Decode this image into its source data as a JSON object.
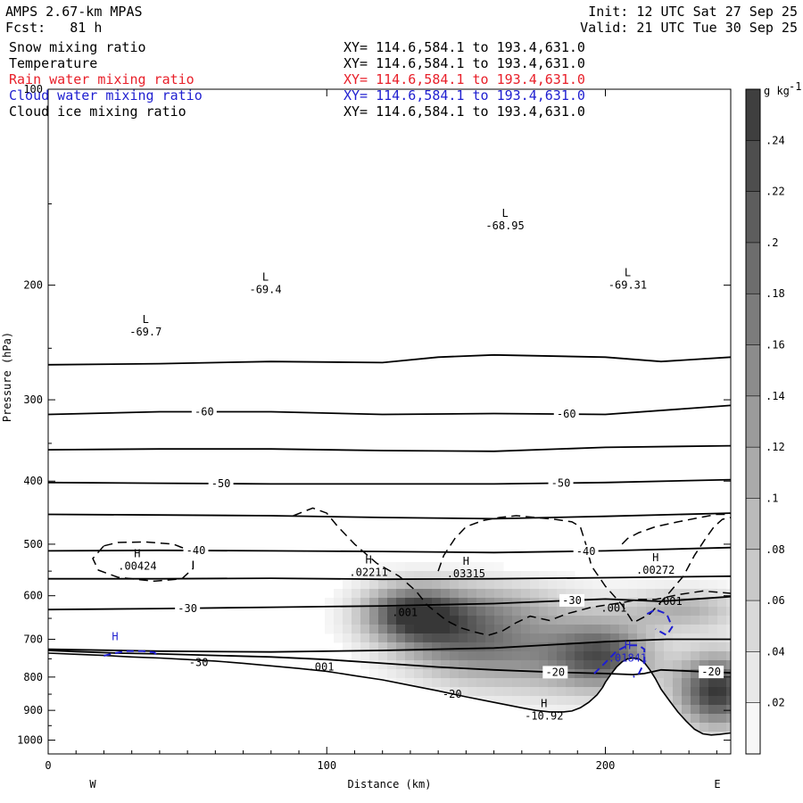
{
  "header": {
    "model": "AMPS 2.67-km MPAS",
    "forecast": "Fcst:   81 h",
    "init": "Init: 12 UTC Sat 27 Sep 25",
    "valid": "Valid: 21 UTC Tue 30 Sep 25"
  },
  "fields": [
    {
      "name": "Snow mixing ratio",
      "xy": "XY= 114.6,584.1 to 193.4,631.0",
      "color": "#000000"
    },
    {
      "name": "Temperature",
      "xy": "XY= 114.6,584.1 to 193.4,631.0",
      "color": "#000000"
    },
    {
      "name": "Rain water mixing ratio",
      "xy": "XY= 114.6,584.1 to 193.4,631.0",
      "color": "#e8202a"
    },
    {
      "name": "Cloud water mixing ratio",
      "xy": "XY= 114.6,584.1 to 193.4,631.0",
      "color": "#1f1fd0"
    },
    {
      "name": "Cloud ice mixing ratio",
      "xy": "XY= 114.6,584.1 to 193.4,631.0",
      "color": "#000000"
    }
  ],
  "chart_data": {
    "type": "heatmap",
    "xlabel": "Distance (km)",
    "ylabel": "Pressure (hPa)",
    "xlim": [
      0,
      245
    ],
    "ylim": [
      100,
      1050
    ],
    "y_scale": "log",
    "x_ticks": [
      0,
      100,
      200
    ],
    "y_ticks": [
      100,
      200,
      300,
      400,
      500,
      600,
      700,
      800,
      900,
      1000
    ],
    "left_end_label": "W",
    "right_end_label": "E",
    "colorbar": {
      "unit": "g kg",
      "unit_exp": "-1",
      "levels": [
        ".24",
        ".22",
        ".2",
        ".18",
        ".16",
        ".14",
        ".12",
        ".1",
        ".08",
        ".06",
        ".04",
        ".02"
      ],
      "shading_range": [
        0,
        0.26
      ]
    },
    "temperature_isotherms": [
      {
        "x": [
          0,
          40,
          80,
          120,
          140,
          160,
          200,
          220,
          245
        ],
        "p": [
          265,
          264,
          262,
          263,
          258,
          256,
          258,
          262,
          258
        ]
      },
      {
        "x": [
          0,
          40,
          80,
          120,
          160,
          200,
          245
        ],
        "p": [
          316,
          313,
          313,
          316,
          315,
          316,
          306
        ],
        "label": "-60",
        "label_x": [
          56,
          186
        ]
      },
      {
        "x": [
          0,
          40,
          80,
          120,
          160,
          200,
          245
        ],
        "p": [
          358,
          357,
          357,
          359,
          360,
          355,
          353
        ]
      },
      {
        "x": [
          0,
          40,
          80,
          120,
          160,
          200,
          245
        ],
        "p": [
          402,
          403,
          404,
          404,
          404,
          402,
          398
        ],
        "label": "-50",
        "label_x": [
          62,
          184
        ]
      },
      {
        "x": [
          0,
          40,
          80,
          120,
          160,
          200,
          245
        ],
        "p": [
          450,
          451,
          452,
          455,
          457,
          453,
          448
        ]
      },
      {
        "x": [
          0,
          40,
          80,
          120,
          160,
          200,
          245
        ],
        "p": [
          512,
          511,
          512,
          513,
          515,
          512,
          506
        ],
        "label": "-40",
        "label_x": [
          53,
          193
        ]
      },
      {
        "x": [
          0,
          40,
          80,
          120,
          160,
          200,
          245
        ],
        "p": [
          565,
          565,
          564,
          566,
          565,
          563,
          560
        ]
      },
      {
        "x": [
          0,
          40,
          80,
          120,
          160,
          200,
          220,
          245
        ],
        "p": [
          630,
          628,
          625,
          622,
          617,
          607,
          612,
          602
        ],
        "label": "-30",
        "label_x": [
          50,
          188
        ]
      },
      {
        "x": [
          0,
          10,
          25,
          40,
          60,
          80,
          100,
          120,
          140,
          160,
          180,
          200,
          210,
          214,
          220,
          245
        ],
        "p": [
          728,
          731,
          735,
          737,
          741,
          745,
          752,
          762,
          772,
          780,
          786,
          790,
          793,
          790,
          780,
          788
        ],
        "label": "-20",
        "label_x": [
          182,
          238
        ]
      },
      {
        "x": [
          0,
          40,
          80,
          120,
          160,
          200,
          222,
          245
        ],
        "p": [
          725,
          730,
          732,
          728,
          722,
          706,
          700,
          700
        ]
      }
    ],
    "terrain": {
      "x": [
        0,
        10,
        20,
        30,
        40,
        50,
        60,
        70,
        80,
        90,
        100,
        110,
        120,
        130,
        140,
        150,
        160,
        170,
        175,
        180,
        185,
        188,
        191,
        194,
        197,
        199,
        200,
        202,
        204,
        206,
        208,
        210,
        212,
        214,
        216,
        218,
        220,
        223,
        226,
        229,
        232,
        235,
        238,
        241,
        245
      ],
      "p": [
        735,
        738,
        741,
        745,
        748,
        752,
        756,
        762,
        769,
        776,
        784,
        796,
        808,
        824,
        840,
        858,
        875,
        892,
        900,
        905,
        905,
        902,
        892,
        875,
        852,
        830,
        815,
        792,
        772,
        758,
        750,
        748,
        750,
        760,
        780,
        805,
        835,
        870,
        905,
        935,
        962,
        978,
        982,
        980,
        975
      ]
    },
    "shading_cores": [
      {
        "x": 130,
        "p": 640,
        "amp": 0.22,
        "sx": 12,
        "sy": 0.07
      },
      {
        "x": 147,
        "p": 690,
        "amp": 0.14,
        "sx": 16,
        "sy": 0.1
      },
      {
        "x": 178,
        "p": 735,
        "amp": 0.12,
        "sx": 22,
        "sy": 0.1
      },
      {
        "x": 200,
        "p": 745,
        "amp": 0.16,
        "sx": 12,
        "sy": 0.08
      },
      {
        "x": 240,
        "p": 840,
        "amp": 0.26,
        "sx": 10,
        "sy": 0.09
      },
      {
        "x": 228,
        "p": 630,
        "amp": 0.1,
        "sx": 15,
        "sy": 0.05
      },
      {
        "x": 165,
        "p": 620,
        "amp": 0.06,
        "sx": 20,
        "sy": 0.06
      }
    ],
    "cloud_ice_dashed": [
      {
        "x": [
          20,
          25,
          35,
          45,
          52,
          52,
          48,
          38,
          25,
          18,
          16,
          20
        ],
        "p": [
          503,
          497,
          496,
          500,
          514,
          545,
          565,
          570,
          562,
          548,
          526,
          503
        ]
      },
      {
        "x": [
          88,
          95,
          100,
          104,
          110,
          118,
          126,
          132,
          136,
          140,
          143,
          148,
          153,
          158,
          163,
          168,
          173,
          180,
          186,
          195,
          206,
          212,
          218,
          226,
          235,
          245
        ],
        "p": [
          452,
          440,
          448,
          470,
          500,
          535,
          560,
          590,
          620,
          640,
          655,
          672,
          682,
          690,
          680,
          660,
          645,
          655,
          640,
          625,
          615,
          608,
          608,
          598,
          590,
          595
        ]
      },
      {
        "x": [
          140,
          142,
          146,
          150,
          156,
          162,
          168,
          175,
          182,
          188,
          191,
          193,
          195,
          200,
          206,
          210,
          216,
          222,
          228,
          232,
          236,
          239,
          242,
          245
        ],
        "p": [
          550,
          520,
          490,
          470,
          460,
          455,
          452,
          455,
          458,
          462,
          470,
          500,
          540,
          580,
          620,
          660,
          640,
          600,
          560,
          520,
          490,
          470,
          458,
          455
        ]
      },
      {
        "x": [
          206,
          208,
          212,
          218,
          226,
          234,
          240,
          245
        ],
        "p": [
          500,
          490,
          480,
          470,
          462,
          455,
          450,
          450
        ]
      }
    ],
    "cloud_water_dashed": [
      {
        "x": [
          20,
          24,
          28,
          34,
          38,
          39
        ],
        "p": [
          742,
          735,
          730,
          730,
          733,
          740
        ]
      },
      {
        "x": [
          196,
          200,
          204,
          208,
          212,
          214,
          214,
          212,
          210
        ],
        "p": [
          790,
          760,
          730,
          715,
          715,
          725,
          760,
          790,
          800
        ]
      },
      {
        "x": [
          215,
          218,
          222,
          224,
          222,
          218
        ],
        "p": [
          640,
          630,
          640,
          670,
          690,
          675
        ]
      }
    ],
    "extrema": [
      {
        "type": "L",
        "value": "-69.7",
        "x": 35,
        "p": 236
      },
      {
        "type": "L",
        "value": "-69.4",
        "x": 78,
        "p": 203
      },
      {
        "type": "L",
        "value": "-68.95",
        "x": 164,
        "p": 162
      },
      {
        "type": "L",
        "value": "-69.31",
        "x": 208,
        "p": 200
      },
      {
        "type": "H",
        "value": ".00424",
        "x": 32,
        "p": 540
      },
      {
        "type": "H",
        "value": ".02211",
        "x": 115,
        "p": 552
      },
      {
        "type": "H",
        "value": ".03315",
        "x": 150,
        "p": 555
      },
      {
        "type": "H",
        "value": ".00272",
        "x": 218,
        "p": 548
      },
      {
        "type": "H",
        "value": ".01841",
        "x": 208,
        "p": 748
      },
      {
        "type": "H",
        "value": "-10.92",
        "x": 178,
        "p": 918
      },
      {
        "type": "H",
        "value": "",
        "x": 24,
        "p": 725
      }
    ],
    "minor_labels": [
      {
        "text": ".001",
        "x": 128,
        "p": 637
      },
      {
        "text": ".001",
        "x": 203,
        "p": 627
      },
      {
        "text": ".001",
        "x": 223,
        "p": 612
      },
      {
        "text": ".001",
        "x": 98,
        "p": 772
      },
      {
        "text": "-20",
        "x": 145,
        "p": 850
      },
      {
        "text": "-30",
        "x": 54,
        "p": 760
      }
    ]
  }
}
